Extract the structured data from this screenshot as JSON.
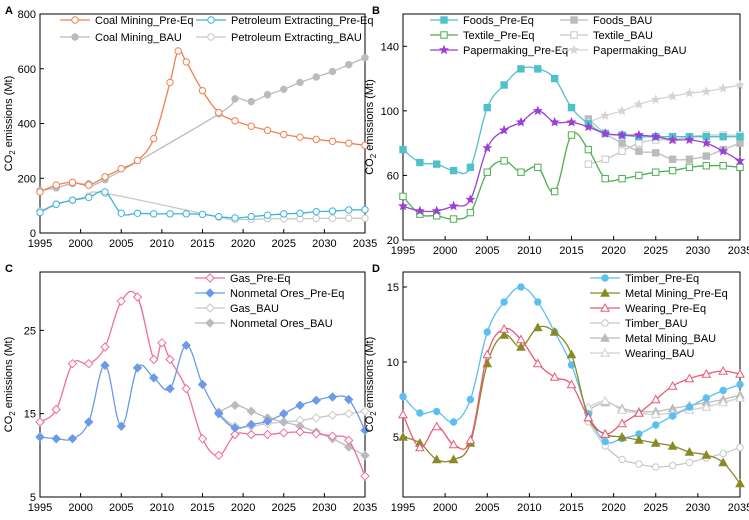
{
  "figure": {
    "panels": [
      "A",
      "B",
      "C",
      "D"
    ]
  },
  "chart_data": [
    {
      "panel": "A",
      "type": "line",
      "ylabel": "CO2 emissions (Mt)",
      "ylabel_main": "CO",
      "ylabel_sub": "2",
      "ylabel_rest": " emissions (Mt)",
      "xlabel": "",
      "xlim": [
        1995,
        2035
      ],
      "ylim": [
        0,
        800
      ],
      "xticks": [
        1995,
        2000,
        2005,
        2010,
        2015,
        2020,
        2025,
        2030,
        2035
      ],
      "yticks": [
        0,
        200,
        400,
        600,
        800
      ],
      "legend_position": "top",
      "series": [
        {
          "name": "Coal Mining_Pre-Eq",
          "color": "#f08050",
          "marker": "open-circle",
          "x": [
            1995,
            1997,
            1999,
            2001,
            2003,
            2005,
            2007,
            2009,
            2011,
            2012,
            2013,
            2015,
            2017,
            2019,
            2021,
            2023,
            2025,
            2027,
            2029,
            2031,
            2033,
            2035
          ],
          "y": [
            150,
            175,
            185,
            175,
            205,
            235,
            265,
            345,
            550,
            665,
            625,
            520,
            440,
            410,
            390,
            375,
            360,
            350,
            342,
            335,
            328,
            320
          ]
        },
        {
          "name": "Petroleum Extracting_Pre-Eq",
          "color": "#3ab5d9",
          "marker": "open-circle",
          "x": [
            1995,
            1997,
            1999,
            2001,
            2003,
            2005,
            2007,
            2009,
            2011,
            2013,
            2015,
            2017,
            2019,
            2021,
            2023,
            2025,
            2027,
            2029,
            2031,
            2033,
            2035
          ],
          "y": [
            75,
            105,
            120,
            130,
            150,
            72,
            72,
            70,
            70,
            70,
            68,
            60,
            55,
            60,
            65,
            70,
            72,
            78,
            80,
            84,
            85
          ]
        },
        {
          "name": "Coal Mining_BAU",
          "color": "#bbbbbb",
          "marker": "filled-circle",
          "x": [
            1995,
            1997,
            1999,
            2001,
            2003,
            2017,
            2019,
            2021,
            2023,
            2025,
            2027,
            2029,
            2031,
            2033,
            2035
          ],
          "y": [
            155,
            165,
            180,
            180,
            195,
            435,
            490,
            480,
            505,
            525,
            550,
            570,
            590,
            615,
            640
          ]
        },
        {
          "name": "Petroleum Extracting_BAU",
          "color": "#c8c8c8",
          "marker": "open-circle",
          "x": [
            1995,
            1997,
            1999,
            2001,
            2003,
            2017,
            2019,
            2021,
            2023,
            2025,
            2027,
            2029,
            2031,
            2033,
            2035
          ],
          "y": [
            80,
            105,
            120,
            135,
            145,
            58,
            50,
            50,
            52,
            52,
            52,
            53,
            54,
            54,
            54
          ]
        }
      ]
    },
    {
      "panel": "B",
      "type": "line",
      "ylabel": "CO2 emissions (Mt)",
      "ylabel_main": "CO",
      "ylabel_sub": "2",
      "ylabel_rest": " emissions (Mt)",
      "xlabel": "",
      "xlim": [
        1995,
        2035
      ],
      "ylim": [
        20,
        160
      ],
      "xticks": [
        1995,
        2000,
        2005,
        2010,
        2015,
        2020,
        2025,
        2030,
        2035
      ],
      "yticks": [
        20,
        60,
        100,
        140
      ],
      "legend_position": "top",
      "series": [
        {
          "name": "Foods_Pre-Eq",
          "color": "#4fc1cb",
          "marker": "filled-square",
          "x": [
            1995,
            1997,
            1999,
            2001,
            2003,
            2005,
            2007,
            2009,
            2011,
            2013,
            2015,
            2017,
            2019,
            2021,
            2023,
            2025,
            2027,
            2029,
            2031,
            2033,
            2035
          ],
          "y": [
            76,
            68,
            67,
            63,
            65,
            102,
            116,
            126,
            126,
            120,
            102,
            92,
            86,
            85,
            84,
            84,
            84,
            84,
            84,
            84,
            84
          ]
        },
        {
          "name": "Textile_Pre-Eq",
          "color": "#4caf50",
          "marker": "open-square",
          "x": [
            1995,
            1997,
            1999,
            2001,
            2003,
            2005,
            2007,
            2009,
            2011,
            2013,
            2015,
            2017,
            2019,
            2021,
            2023,
            2025,
            2027,
            2029,
            2031,
            2033,
            2035
          ],
          "y": [
            47,
            36,
            35,
            33,
            37,
            62,
            69,
            62,
            65,
            50,
            85,
            76,
            58,
            58,
            60,
            62,
            63,
            65,
            66,
            66,
            65
          ]
        },
        {
          "name": "Papermaking_Pre-Eq",
          "color": "#9b3fd6",
          "marker": "star",
          "x": [
            1995,
            1997,
            1999,
            2001,
            2003,
            2005,
            2007,
            2009,
            2011,
            2013,
            2015,
            2017,
            2019,
            2021,
            2023,
            2025,
            2027,
            2029,
            2031,
            2033,
            2035
          ],
          "y": [
            41,
            38,
            38,
            41,
            45,
            77,
            88,
            93,
            100,
            93,
            93,
            90,
            86,
            85,
            85,
            84,
            82,
            82,
            80,
            75,
            69
          ]
        },
        {
          "name": "Foods_BAU",
          "color": "#bbbbbb",
          "marker": "filled-square",
          "x": [
            2017,
            2019,
            2021,
            2023,
            2025,
            2027,
            2029,
            2031,
            2033,
            2035
          ],
          "y": [
            95,
            86,
            80,
            75,
            74,
            70,
            70,
            72,
            76,
            80
          ]
        },
        {
          "name": "Textile_BAU",
          "color": "#c8c8c8",
          "marker": "open-square",
          "x": [
            2017,
            2019,
            2021,
            2023,
            2025,
            2027,
            2029,
            2031,
            2033,
            2035
          ],
          "y": [
            67,
            70,
            75,
            80,
            82,
            82,
            84,
            85,
            85,
            85
          ]
        },
        {
          "name": "Papermaking_BAU",
          "color": "#d4d4d4",
          "marker": "star",
          "x": [
            2017,
            2019,
            2021,
            2023,
            2025,
            2027,
            2029,
            2031,
            2033,
            2035
          ],
          "y": [
            93,
            97,
            100,
            104,
            107,
            109,
            111,
            112,
            114,
            116
          ]
        }
      ]
    },
    {
      "panel": "C",
      "type": "line",
      "ylabel": "CO2 emissions (Mt)",
      "ylabel_main": "CO",
      "ylabel_sub": "2",
      "ylabel_rest": " emissions (Mt)",
      "xlabel": "",
      "xlim": [
        1995,
        2035
      ],
      "ylim": [
        5,
        32
      ],
      "xticks": [
        1995,
        2000,
        2005,
        2010,
        2015,
        2020,
        2025,
        2030,
        2035
      ],
      "yticks": [
        5,
        15,
        25
      ],
      "legend_position": "top-right",
      "series": [
        {
          "name": "Gas_Pre-Eq",
          "color": "#f06e9a",
          "marker": "open-diamond",
          "x": [
            1995,
            1997,
            1999,
            2001,
            2003,
            2005,
            2007,
            2009,
            2010,
            2011,
            2013,
            2015,
            2017,
            2019,
            2021,
            2023,
            2025,
            2027,
            2029,
            2031,
            2033,
            2035
          ],
          "y": [
            14,
            15.5,
            21,
            21,
            23,
            28.5,
            29,
            21.5,
            23.5,
            21.5,
            18,
            12,
            10,
            12.5,
            12.5,
            12.5,
            12.7,
            12.8,
            12.6,
            12.3,
            11.8,
            7.5
          ]
        },
        {
          "name": "Nonmetal Ores_Pre-Eq",
          "color": "#6a9ae8",
          "marker": "filled-diamond",
          "x": [
            1995,
            1997,
            1999,
            2001,
            2003,
            2005,
            2007,
            2009,
            2011,
            2013,
            2015,
            2017,
            2019,
            2021,
            2023,
            2025,
            2027,
            2029,
            2031,
            2033,
            2035
          ],
          "y": [
            12.2,
            12,
            12,
            14,
            20.8,
            13.5,
            20.5,
            19.3,
            18,
            23.2,
            18.5,
            15,
            13.3,
            13.7,
            14.1,
            15,
            16,
            16.6,
            17,
            16.7,
            13
          ]
        },
        {
          "name": "Gas_BAU",
          "color": "#c8c8c8",
          "marker": "open-diamond",
          "x": [
            2017,
            2019,
            2021,
            2023,
            2025,
            2027,
            2029,
            2031,
            2033,
            2035
          ],
          "y": [
            15,
            13.5,
            13.5,
            13.8,
            14,
            14.2,
            14.5,
            14.8,
            15,
            15.3
          ]
        },
        {
          "name": "Nonmetal Ores_BAU",
          "color": "#bbbbbb",
          "marker": "filled-diamond",
          "x": [
            2017,
            2019,
            2021,
            2023,
            2025,
            2027,
            2029,
            2031,
            2033,
            2035
          ],
          "y": [
            15.2,
            16,
            15.3,
            14.5,
            14,
            13.5,
            12.8,
            12,
            11,
            10
          ]
        }
      ]
    },
    {
      "panel": "D",
      "type": "line",
      "ylabel": "CO2 emissions (Mt)",
      "ylabel_main": "CO",
      "ylabel_sub": "2",
      "ylabel_rest": " emissions (Mt)",
      "xlabel": "",
      "xlim": [
        1995,
        2035
      ],
      "ylim": [
        1,
        16
      ],
      "xticks": [
        1995,
        2000,
        2005,
        2010,
        2015,
        2020,
        2025,
        2030,
        2035
      ],
      "yticks": [
        5,
        10,
        15
      ],
      "legend_position": "top-right",
      "series": [
        {
          "name": "Timber_Pre-Eq",
          "color": "#5bc0f0",
          "marker": "filled-circle",
          "x": [
            1995,
            1997,
            1999,
            2001,
            2003,
            2005,
            2007,
            2009,
            2011,
            2013,
            2015,
            2017,
            2019,
            2021,
            2023,
            2025,
            2027,
            2029,
            2031,
            2033,
            2035
          ],
          "y": [
            7.7,
            6.6,
            6.7,
            6,
            7.5,
            12,
            14,
            15,
            14,
            12,
            9.8,
            6.5,
            4.7,
            4.9,
            5.2,
            5.8,
            6.4,
            7,
            7.6,
            8.1,
            8.5
          ]
        },
        {
          "name": "Metal Mining_Pre-Eq",
          "color": "#8a8a25",
          "marker": "filled-triangle",
          "x": [
            1995,
            1997,
            1999,
            2001,
            2003,
            2005,
            2007,
            2009,
            2011,
            2013,
            2015,
            2017,
            2019,
            2021,
            2023,
            2025,
            2027,
            2029,
            2031,
            2033,
            2035
          ],
          "y": [
            5,
            4.6,
            3.5,
            3.5,
            4.6,
            9.9,
            11.8,
            11,
            12.3,
            12,
            10.5,
            6.3,
            5.2,
            5,
            4.8,
            4.6,
            4.4,
            4,
            3.8,
            3.3,
            1.9
          ]
        },
        {
          "name": "Wearing_Pre-Eq",
          "color": "#e85a7a",
          "marker": "open-triangle",
          "x": [
            1995,
            1997,
            1999,
            2001,
            2003,
            2005,
            2007,
            2009,
            2011,
            2013,
            2015,
            2017,
            2019,
            2021,
            2023,
            2025,
            2027,
            2029,
            2031,
            2033,
            2035
          ],
          "y": [
            6.5,
            4.3,
            5.7,
            4.5,
            4.8,
            10.5,
            12.2,
            11.5,
            9.9,
            9,
            8.5,
            6.3,
            5.2,
            5.9,
            6.6,
            7.5,
            8.4,
            8.9,
            9.2,
            9.4,
            9.2
          ]
        },
        {
          "name": "Timber_BAU",
          "color": "#c8c8c8",
          "marker": "open-circle",
          "x": [
            2017,
            2019,
            2021,
            2023,
            2025,
            2027,
            2029,
            2031,
            2033,
            2035
          ],
          "y": [
            6,
            4.4,
            3.5,
            3.2,
            3,
            3.1,
            3.3,
            3.6,
            3.9,
            4.3
          ]
        },
        {
          "name": "Metal Mining_BAU",
          "color": "#bbbbbb",
          "marker": "filled-triangle",
          "x": [
            2017,
            2019,
            2021,
            2023,
            2025,
            2027,
            2029,
            2031,
            2033,
            2035
          ],
          "y": [
            6.8,
            7.3,
            6.9,
            6.7,
            6.7,
            6.9,
            7.1,
            7.3,
            7.5,
            7.8
          ]
        },
        {
          "name": "Wearing_BAU",
          "color": "#d0d0d0",
          "marker": "open-triangle",
          "x": [
            2017,
            2019,
            2021,
            2023,
            2025,
            2027,
            2029,
            2031,
            2033,
            2035
          ],
          "y": [
            7,
            7.4,
            6.8,
            6.6,
            6.5,
            6.6,
            6.8,
            7,
            7.3,
            7.6
          ]
        }
      ]
    }
  ]
}
